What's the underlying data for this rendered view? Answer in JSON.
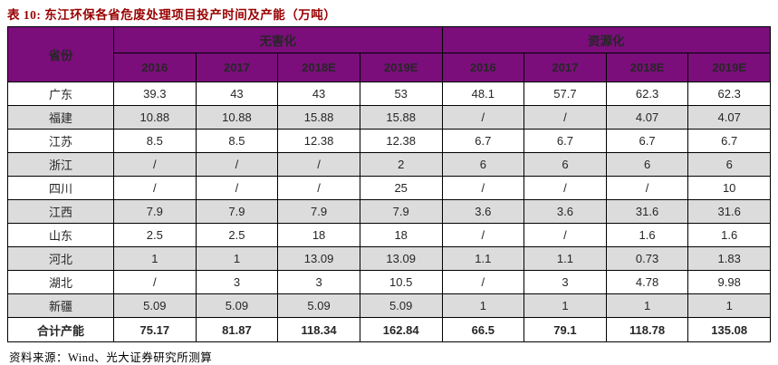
{
  "title": "表 10: 东江环保各省危废处理项目投产时间及产能（万吨）",
  "source_note": "资料来源：Wind、光大证券研究所测算",
  "colors": {
    "title_color": "#990000",
    "header_bg": "#7B0E7B",
    "header_text": "#FFFFFF",
    "stripe_bg": "#DCDCDC",
    "border_color": "#000000"
  },
  "table": {
    "corner_header": "省份",
    "groups": [
      {
        "label": "无害化",
        "years": [
          "2016",
          "2017",
          "2018E",
          "2019E"
        ]
      },
      {
        "label": "资源化",
        "years": [
          "2016",
          "2017",
          "2018E",
          "2019E"
        ]
      }
    ],
    "rows": [
      {
        "province": "广东",
        "cells": [
          "39.3",
          "43",
          "43",
          "53",
          "48.1",
          "57.7",
          "62.3",
          "62.3"
        ]
      },
      {
        "province": "福建",
        "cells": [
          "10.88",
          "10.88",
          "15.88",
          "15.88",
          "/",
          "/",
          "4.07",
          "4.07"
        ]
      },
      {
        "province": "江苏",
        "cells": [
          "8.5",
          "8.5",
          "12.38",
          "12.38",
          "6.7",
          "6.7",
          "6.7",
          "6.7"
        ]
      },
      {
        "province": "浙江",
        "cells": [
          "/",
          "/",
          "/",
          "2",
          "6",
          "6",
          "6",
          "6"
        ]
      },
      {
        "province": "四川",
        "cells": [
          "/",
          "/",
          "/",
          "25",
          "/",
          "/",
          "/",
          "10"
        ]
      },
      {
        "province": "江西",
        "cells": [
          "7.9",
          "7.9",
          "7.9",
          "7.9",
          "3.6",
          "3.6",
          "31.6",
          "31.6"
        ]
      },
      {
        "province": "山东",
        "cells": [
          "2.5",
          "2.5",
          "18",
          "18",
          "/",
          "/",
          "1.6",
          "1.6"
        ]
      },
      {
        "province": "河北",
        "cells": [
          "1",
          "1",
          "13.09",
          "13.09",
          "1.1",
          "1.1",
          "0.73",
          "1.83"
        ]
      },
      {
        "province": "湖北",
        "cells": [
          "/",
          "3",
          "3",
          "10.5",
          "/",
          "3",
          "4.78",
          "9.98"
        ]
      },
      {
        "province": "新疆",
        "cells": [
          "5.09",
          "5.09",
          "5.09",
          "5.09",
          "1",
          "1",
          "1",
          "1"
        ]
      }
    ],
    "total": {
      "label": "合计产能",
      "cells": [
        "75.17",
        "81.87",
        "118.34",
        "162.84",
        "66.5",
        "79.1",
        "118.78",
        "135.08"
      ]
    }
  },
  "chart_data": {
    "type": "table",
    "title": "表 10: 东江环保各省危废处理项目投产时间及产能（万吨）",
    "columns": [
      "省份",
      "无害化 2016",
      "无害化 2017",
      "无害化 2018E",
      "无害化 2019E",
      "资源化 2016",
      "资源化 2017",
      "资源化 2018E",
      "资源化 2019E"
    ],
    "rows": [
      [
        "广东",
        "39.3",
        "43",
        "43",
        "53",
        "48.1",
        "57.7",
        "62.3",
        "62.3"
      ],
      [
        "福建",
        "10.88",
        "10.88",
        "15.88",
        "15.88",
        "/",
        "/",
        "4.07",
        "4.07"
      ],
      [
        "江苏",
        "8.5",
        "8.5",
        "12.38",
        "12.38",
        "6.7",
        "6.7",
        "6.7",
        "6.7"
      ],
      [
        "浙江",
        "/",
        "/",
        "/",
        "2",
        "6",
        "6",
        "6",
        "6"
      ],
      [
        "四川",
        "/",
        "/",
        "/",
        "25",
        "/",
        "/",
        "/",
        "10"
      ],
      [
        "江西",
        "7.9",
        "7.9",
        "7.9",
        "7.9",
        "3.6",
        "3.6",
        "31.6",
        "31.6"
      ],
      [
        "山东",
        "2.5",
        "2.5",
        "18",
        "18",
        "/",
        "/",
        "1.6",
        "1.6"
      ],
      [
        "河北",
        "1",
        "1",
        "13.09",
        "13.09",
        "1.1",
        "1.1",
        "0.73",
        "1.83"
      ],
      [
        "湖北",
        "/",
        "3",
        "3",
        "10.5",
        "/",
        "3",
        "4.78",
        "9.98"
      ],
      [
        "新疆",
        "5.09",
        "5.09",
        "5.09",
        "5.09",
        "1",
        "1",
        "1",
        "1"
      ],
      [
        "合计产能",
        "75.17",
        "81.87",
        "118.34",
        "162.84",
        "66.5",
        "79.1",
        "118.78",
        "135.08"
      ]
    ]
  }
}
